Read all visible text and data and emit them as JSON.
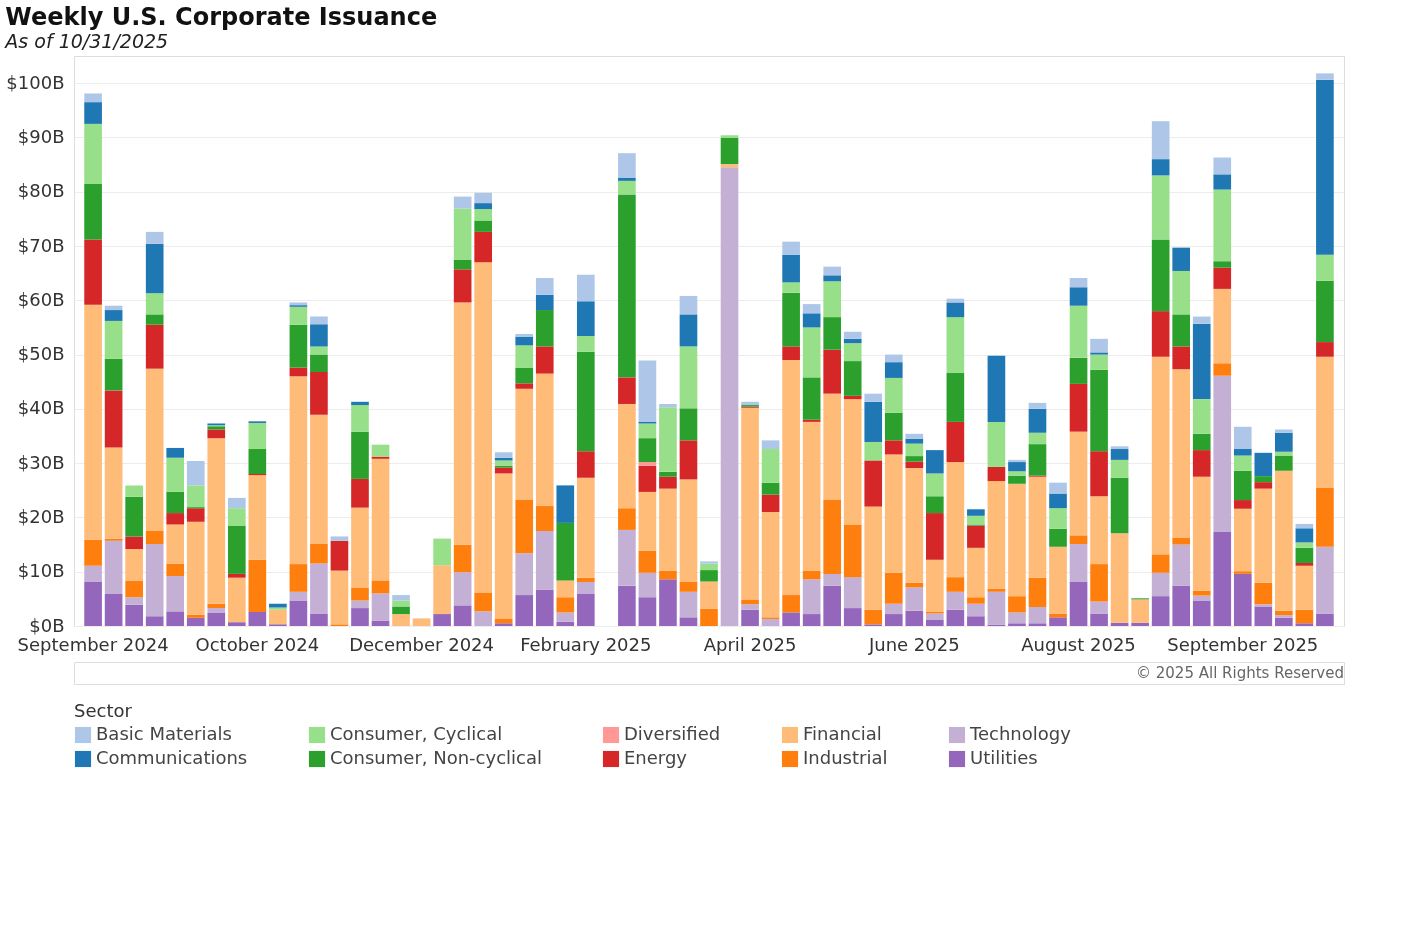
{
  "chart_data": {
    "type": "bar",
    "title": "Weekly U.S. Corporate Issuance",
    "subtitle": "As of 10/31/2025",
    "legend_title": "Sector",
    "annotations": [
      "© 2025 All Rights Reserved"
    ],
    "categories": [
      "September 2024",
      null,
      null,
      null,
      null,
      null,
      null,
      null,
      "October 2024",
      null,
      null,
      null,
      null,
      null,
      null,
      null,
      "December 2024",
      null,
      null,
      null,
      null,
      null,
      null,
      null,
      "February 2025",
      null,
      null,
      null,
      null,
      null,
      null,
      null,
      "April 2025",
      null,
      null,
      null,
      null,
      null,
      null,
      null,
      "June 2025",
      null,
      null,
      null,
      null,
      null,
      null,
      null,
      "August 2025",
      null,
      null,
      null,
      null,
      null,
      null,
      null,
      "September 2025",
      null,
      null,
      null,
      null
    ],
    "stacked": true,
    "grid": "y",
    "legend": "bottom",
    "ylim": [
      0,
      105
    ],
    "yticks": [
      {
        "value": 0,
        "label": "$0B"
      },
      {
        "value": 10,
        "label": "$10B"
      },
      {
        "value": 20,
        "label": "$20B"
      },
      {
        "value": 30,
        "label": "$30B"
      },
      {
        "value": 40,
        "label": "$40B"
      },
      {
        "value": 50,
        "label": "$50B"
      },
      {
        "value": 60,
        "label": "$60B"
      },
      {
        "value": 70,
        "label": "$70B"
      },
      {
        "value": 80,
        "label": "$80B"
      },
      {
        "value": 90,
        "label": "$90B"
      },
      {
        "value": 100,
        "label": "$100B"
      }
    ],
    "series": [
      {
        "name": "Utilities",
        "color": "#9467bd",
        "values": [
          8.2,
          5.9,
          3.9,
          1.8,
          2.7,
          1.5,
          2.4,
          0.7,
          2.6,
          0.3,
          4.7,
          2.3,
          null,
          3.3,
          1.0,
          null,
          null,
          2.2,
          3.8,
          null,
          0.5,
          5.7,
          6.7,
          0.8,
          5.9,
          null,
          7.4,
          5.3,
          8.6,
          1.6,
          null,
          null,
          3.0,
          null,
          2.5,
          2.2,
          7.4,
          3.3,
          0.3,
          2.2,
          2.8,
          1.2,
          3.0,
          1.8,
          0.2,
          0.5,
          0.5,
          1.6,
          8.2,
          2.3,
          0.6,
          0.6,
          5.5,
          7.4,
          4.7,
          17.3,
          9.6,
          3.6,
          1.5,
          0.5,
          2.3
        ]
      },
      {
        "name": "Technology",
        "color": "#c5b0d5",
        "values": [
          2.9,
          9.8,
          1.4,
          13.3,
          6.5,
          null,
          0.9,
          null,
          null,
          null,
          1.6,
          9.2,
          null,
          1.4,
          5.0,
          null,
          null,
          null,
          6.1,
          2.7,
          null,
          7.7,
          10.8,
          1.7,
          2.2,
          null,
          10.3,
          4.5,
          null,
          4.7,
          null,
          84.5,
          1.0,
          1.3,
          null,
          6.4,
          2.2,
          5.7,
          null,
          1.9,
          4.3,
          1.1,
          3.3,
          2.3,
          6.1,
          2.0,
          3.0,
          null,
          6.9,
          2.2,
          null,
          null,
          4.3,
          7.6,
          0.9,
          28.8,
          null,
          0.4,
          0.5,
          null,
          12.3
        ]
      },
      {
        "name": "Industrial",
        "color": "#ff7f0e",
        "values": [
          4.8,
          0.4,
          3.1,
          2.4,
          2.3,
          0.6,
          0.8,
          null,
          9.6,
          null,
          5.1,
          3.6,
          0.3,
          2.4,
          2.4,
          null,
          null,
          null,
          5.1,
          3.4,
          0.8,
          9.8,
          4.6,
          2.8,
          0.8,
          null,
          4.0,
          4.1,
          1.6,
          1.9,
          3.2,
          null,
          0.9,
          0.3,
          3.2,
          1.6,
          13.6,
          9.6,
          2.7,
          5.7,
          0.9,
          0.3,
          2.7,
          1.2,
          0.6,
          3.0,
          5.4,
          0.7,
          1.6,
          6.9,
          null,
          null,
          3.4,
          1.3,
          0.9,
          2.3,
          0.5,
          4.0,
          0.8,
          2.5,
          10.9
        ]
      },
      {
        "name": "Financial",
        "color": "#ffbb78",
        "values": [
          43.3,
          16.8,
          5.8,
          29.9,
          7.2,
          17.1,
          30.5,
          8.2,
          15.6,
          2.7,
          34.6,
          23.8,
          9.9,
          14.7,
          22.4,
          2.2,
          1.4,
          9.0,
          44.6,
          60.9,
          26.8,
          20.5,
          24.4,
          3.1,
          18.4,
          null,
          19.2,
          10.8,
          15.1,
          18.8,
          5.0,
          0.6,
          35.3,
          19.4,
          43.3,
          27.4,
          19.6,
          23.2,
          19.0,
          21.8,
          21.1,
          9.6,
          21.2,
          9.1,
          19.8,
          20.7,
          18.6,
          12.3,
          19.1,
          12.5,
          16.5,
          4.3,
          36.4,
          31.0,
          21.0,
          13.7,
          11.5,
          17.3,
          25.8,
          8.1,
          24.1
        ]
      },
      {
        "name": "Energy",
        "color": "#d62728",
        "values": [
          12.0,
          10.5,
          2.3,
          8.1,
          2.1,
          2.5,
          1.6,
          0.7,
          0.2,
          null,
          1.6,
          7.9,
          5.5,
          5.3,
          0.4,
          null,
          null,
          null,
          6.1,
          5.6,
          1.1,
          1.0,
          5.0,
          null,
          4.9,
          null,
          4.9,
          4.8,
          2.2,
          7.2,
          null,
          null,
          0.2,
          3.2,
          2.5,
          0.4,
          8.1,
          0.6,
          8.5,
          2.6,
          1.2,
          8.6,
          7.4,
          4.1,
          2.6,
          null,
          0.2,
          null,
          8.8,
          8.3,
          null,
          null,
          8.4,
          4.2,
          4.9,
          3.9,
          1.6,
          1.2,
          null,
          0.5,
          2.7
        ]
      },
      {
        "name": "Diversified",
        "color": "#ff9896",
        "values": [
          null,
          null,
          null,
          null,
          null,
          null,
          null,
          null,
          null,
          null,
          null,
          null,
          null,
          null,
          null,
          null,
          null,
          null,
          null,
          null,
          null,
          null,
          null,
          null,
          null,
          null,
          null,
          0.7,
          null,
          null,
          null,
          null,
          null,
          null,
          null,
          null,
          null,
          null,
          null,
          null,
          null,
          null,
          null,
          null,
          null,
          null,
          null,
          null,
          null,
          null,
          null,
          null,
          null,
          null,
          null,
          null,
          null,
          null,
          null,
          null,
          null
        ]
      },
      {
        "name": "Consumer, Non-cyclical",
        "color": "#2ca02c",
        "values": [
          10.2,
          5.8,
          7.3,
          1.9,
          3.9,
          0.2,
          0.6,
          8.9,
          4.6,
          null,
          7.9,
          3.2,
          null,
          8.7,
          null,
          1.4,
          null,
          null,
          1.8,
          2.1,
          0.3,
          2.9,
          6.7,
          10.6,
          18.3,
          null,
          33.7,
          4.4,
          0.9,
          5.9,
          2.1,
          4.8,
          0.3,
          2.2,
          9.9,
          7.8,
          6.0,
          6.4,
          null,
          5.1,
          1.0,
          3.1,
          9.0,
          0.2,
          null,
          1.5,
          5.8,
          3.3,
          4.8,
          15.0,
          10.2,
          0.2,
          13.2,
          5.9,
          3.0,
          1.2,
          5.4,
          1.1,
          2.8,
          2.8,
          11.3
        ]
      },
      {
        "name": "Consumer, Cyclical",
        "color": "#98df8a",
        "values": [
          11.1,
          7.0,
          2.1,
          3.9,
          6.3,
          4.0,
          0.2,
          3.2,
          4.8,
          0.4,
          3.3,
          1.5,
          null,
          4.9,
          2.2,
          1.1,
          null,
          4.9,
          9.4,
          2.1,
          1.0,
          4.1,
          null,
          null,
          2.9,
          null,
          2.5,
          2.7,
          11.9,
          11.4,
          1.2,
          0.5,
          null,
          6.2,
          1.9,
          9.2,
          6.6,
          3.3,
          3.4,
          6.4,
          2.3,
          4.2,
          10.3,
          1.6,
          8.3,
          0.8,
          2.1,
          3.8,
          9.6,
          2.8,
          3.3,
          null,
          11.8,
          8.0,
          6.4,
          13.2,
          2.8,
          null,
          0.7,
          1.0,
          4.8
        ]
      },
      {
        "name": "Communications",
        "color": "#1f77b4",
        "values": [
          4.0,
          2.0,
          null,
          9.1,
          1.8,
          null,
          0.3,
          null,
          0.3,
          0.7,
          0.3,
          4.1,
          null,
          0.6,
          null,
          null,
          null,
          null,
          null,
          1.1,
          0.5,
          1.6,
          2.8,
          6.9,
          6.4,
          null,
          0.6,
          0.3,
          null,
          5.9,
          null,
          null,
          null,
          null,
          5.1,
          2.6,
          1.1,
          0.8,
          7.4,
          2.9,
          0.9,
          4.3,
          2.7,
          1.2,
          12.2,
          1.7,
          4.4,
          2.7,
          3.4,
          0.4,
          2.0,
          null,
          3.0,
          4.3,
          13.9,
          2.8,
          1.2,
          4.3,
          3.5,
          2.6,
          32.2
        ]
      },
      {
        "name": "Basic Materials",
        "color": "#aec7e8",
        "values": [
          1.6,
          0.8,
          null,
          2.2,
          null,
          4.5,
          null,
          1.9,
          null,
          null,
          0.5,
          1.4,
          0.8,
          null,
          null,
          1.0,
          null,
          null,
          2.2,
          1.9,
          1.0,
          0.5,
          3.1,
          null,
          4.9,
          null,
          4.5,
          11.3,
          0.6,
          3.4,
          0.4,
          null,
          0.6,
          1.6,
          2.4,
          1.7,
          1.6,
          1.3,
          1.5,
          1.4,
          0.9,
          null,
          0.7,
          null,
          null,
          0.4,
          1.1,
          2.0,
          1.7,
          2.5,
          0.5,
          null,
          7.0,
          null,
          1.3,
          3.1,
          4.1,
          null,
          0.6,
          0.8,
          1.2
        ]
      }
    ]
  }
}
